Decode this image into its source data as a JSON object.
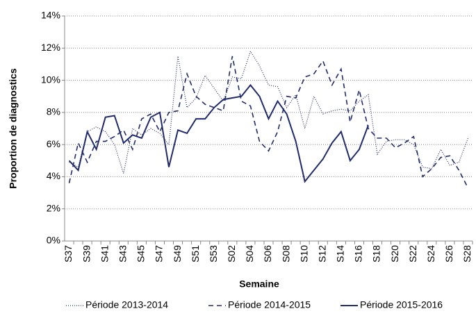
{
  "chart_data": {
    "type": "line",
    "y_label": "Proportion de diagnostics",
    "x_label": "Semaine",
    "categories": [
      "S37",
      null,
      "S39",
      null,
      "S41",
      null,
      "S43",
      null,
      "S45",
      null,
      "S47",
      null,
      "S49",
      null,
      "S51",
      null,
      "S53",
      null,
      "S02",
      null,
      "S04",
      null,
      "S06",
      null,
      "S08",
      null,
      "S10",
      null,
      "S12",
      null,
      "S14",
      null,
      "S16",
      null,
      "S18",
      null,
      "S20",
      null,
      "S22",
      null,
      "S24",
      null,
      "S26",
      null,
      "S28"
    ],
    "ylim": [
      0,
      14
    ],
    "yticks": [
      {
        "value": 0,
        "label": "0%"
      },
      {
        "value": 2,
        "label": "2%"
      },
      {
        "value": 4,
        "label": "4%"
      },
      {
        "value": 6,
        "label": "6%"
      },
      {
        "value": 8,
        "label": "8%"
      },
      {
        "value": 10,
        "label": "10%"
      },
      {
        "value": 12,
        "label": "12%"
      },
      {
        "value": 14,
        "label": "14%"
      }
    ],
    "grid": true,
    "legend": "bottom",
    "series": [
      {
        "name": "Période 2013-2014",
        "color": "#1f2a6b",
        "style": "dotted",
        "values": [
          4.9,
          4.6,
          6.8,
          7.1,
          6.8,
          6.0,
          4.2,
          7.0,
          6.6,
          7.0,
          6.7,
          6.0,
          11.5,
          8.3,
          8.9,
          10.3,
          9.5,
          8.7,
          10.2,
          10.1,
          11.8,
          10.9,
          9.7,
          9.6,
          8.3,
          9.1,
          7.0,
          9.0,
          7.9,
          8.1,
          8.2,
          8.1,
          8.7,
          9.1,
          5.4,
          6.2,
          6.3,
          6.3,
          6.0,
          4.6,
          4.5,
          5.7,
          4.7,
          4.9,
          6.4
        ]
      },
      {
        "name": "Période 2014-2015",
        "color": "#1f2a6b",
        "style": "dashed",
        "values": [
          3.6,
          6.1,
          4.9,
          6.2,
          6.2,
          6.5,
          6.9,
          5.7,
          7.6,
          7.9,
          6.8,
          8.0,
          8.1,
          10.4,
          9.0,
          8.5,
          8.3,
          8.1,
          11.5,
          8.7,
          8.4,
          6.2,
          5.6,
          6.8,
          9.0,
          8.9,
          10.2,
          10.4,
          11.2,
          9.7,
          10.7,
          7.4,
          9.4,
          7.0,
          6.4,
          6.4,
          5.8,
          6.1,
          6.5,
          4.0,
          4.5,
          5.2,
          5.3,
          4.4,
          3.3
        ]
      },
      {
        "name": "Période 2015-2016",
        "color": "#1f2a6b",
        "style": "solid",
        "values": [
          5.0,
          4.4,
          6.8,
          5.7,
          7.7,
          7.8,
          6.1,
          6.6,
          6.4,
          7.7,
          8.0,
          4.6,
          6.9,
          6.7,
          7.6,
          7.6,
          8.3,
          8.8,
          8.9,
          9.0,
          9.7,
          9.0,
          7.6,
          8.7,
          7.9,
          6.2,
          3.7,
          4.4,
          5.1,
          6.1,
          6.8,
          5.0,
          5.7,
          7.2,
          null,
          null,
          null,
          null,
          null,
          null,
          null,
          null,
          null,
          null,
          null
        ]
      }
    ]
  }
}
